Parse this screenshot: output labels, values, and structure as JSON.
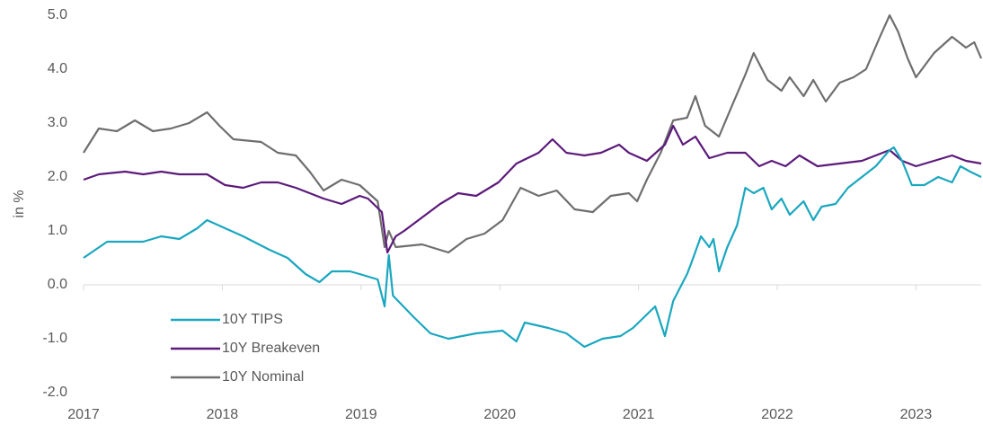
{
  "chart_data": {
    "type": "line",
    "y_label": "in %",
    "xlim": [
      2017,
      2023.47
    ],
    "xticks": [
      2017,
      2018,
      2019,
      2020,
      2021,
      2022,
      2023
    ],
    "ylim": [
      -2,
      5
    ],
    "yticks": [
      {
        "value": -2,
        "label": "-2.0"
      },
      {
        "value": -1,
        "label": "-1.0"
      },
      {
        "value": 0,
        "label": "0.0"
      },
      {
        "value": 1,
        "label": "1.0"
      },
      {
        "value": 2,
        "label": "2.0"
      },
      {
        "value": 3,
        "label": "3.0"
      },
      {
        "value": 4,
        "label": "4.0"
      },
      {
        "value": 5,
        "label": "5.0"
      }
    ],
    "legend": "lower-left",
    "series": [
      {
        "name": "10Y TIPS",
        "color": "#1aa7bf",
        "x": [
          2017,
          2017.17,
          2017.43,
          2017.56,
          2017.69,
          2017.82,
          2017.89,
          2018.02,
          2018.15,
          2018.34,
          2018.47,
          2018.6,
          2018.7,
          2018.79,
          2018.92,
          2018.99,
          2019.12,
          2019.17,
          2019.2,
          2019.23,
          2019.38,
          2019.5,
          2019.63,
          2019.83,
          2020.02,
          2020.12,
          2020.18,
          2020.35,
          2020.48,
          2020.61,
          2020.74,
          2020.87,
          2020.96,
          2021.06,
          2021.12,
          2021.19,
          2021.25,
          2021.35,
          2021.38,
          2021.45,
          2021.51,
          2021.54,
          2021.58,
          2021.64,
          2021.71,
          2021.77,
          2021.83,
          2021.9,
          2021.96,
          2022.03,
          2022.09,
          2022.19,
          2022.26,
          2022.32,
          2022.42,
          2022.51,
          2022.61,
          2022.71,
          2022.81,
          2022.84,
          2022.9,
          2022.97,
          2023.06,
          2023.16,
          2023.26,
          2023.32,
          2023.39,
          2023.47
        ],
        "values": [
          0.5,
          0.8,
          0.8,
          0.9,
          0.85,
          1.05,
          1.2,
          1.05,
          0.9,
          0.65,
          0.5,
          0.2,
          0.05,
          0.25,
          0.25,
          0.2,
          0.1,
          -0.4,
          0.55,
          -0.2,
          -0.6,
          -0.9,
          -1.0,
          -0.9,
          -0.85,
          -1.05,
          -0.7,
          -0.8,
          -0.9,
          -1.15,
          -1.0,
          -0.95,
          -0.8,
          -0.55,
          -0.4,
          -0.95,
          -0.3,
          0.2,
          0.4,
          0.9,
          0.7,
          0.85,
          0.25,
          0.7,
          1.1,
          1.8,
          1.7,
          1.8,
          1.4,
          1.6,
          1.3,
          1.55,
          1.2,
          1.45,
          1.5,
          1.8,
          2.0,
          2.2,
          2.5,
          2.55,
          2.3,
          1.85,
          1.85,
          2.0,
          1.9,
          2.2,
          2.1,
          2.0
        ]
      },
      {
        "name": "10Y Breakeven",
        "color": "#5c1a7a",
        "x": [
          2017,
          2017.11,
          2017.3,
          2017.43,
          2017.56,
          2017.69,
          2017.89,
          2018.02,
          2018.15,
          2018.28,
          2018.4,
          2018.53,
          2018.73,
          2018.86,
          2018.99,
          2019.05,
          2019.15,
          2019.19,
          2019.25,
          2019.31,
          2019.44,
          2019.57,
          2019.7,
          2019.83,
          2019.99,
          2020.12,
          2020.28,
          2020.38,
          2020.48,
          2020.61,
          2020.73,
          2020.86,
          2020.93,
          2021.06,
          2021.19,
          2021.25,
          2021.32,
          2021.41,
          2021.51,
          2021.64,
          2021.77,
          2021.87,
          2021.96,
          2022.06,
          2022.16,
          2022.29,
          2022.45,
          2022.61,
          2022.81,
          2022.9,
          2023.0,
          2023.13,
          2023.26,
          2023.36,
          2023.47
        ],
        "values": [
          1.95,
          2.05,
          2.1,
          2.05,
          2.1,
          2.05,
          2.05,
          1.85,
          1.8,
          1.9,
          1.9,
          1.8,
          1.6,
          1.5,
          1.65,
          1.6,
          1.35,
          0.6,
          0.9,
          1.0,
          1.25,
          1.5,
          1.7,
          1.65,
          1.9,
          2.25,
          2.45,
          2.7,
          2.45,
          2.4,
          2.45,
          2.6,
          2.45,
          2.3,
          2.6,
          2.95,
          2.6,
          2.75,
          2.35,
          2.45,
          2.45,
          2.2,
          2.3,
          2.2,
          2.4,
          2.2,
          2.25,
          2.3,
          2.5,
          2.3,
          2.2,
          2.3,
          2.4,
          2.3,
          2.25
        ]
      },
      {
        "name": "10Y Nominal",
        "color": "#6e6e6e",
        "x": [
          2017,
          2017.11,
          2017.24,
          2017.37,
          2017.5,
          2017.63,
          2017.76,
          2017.89,
          2017.98,
          2018.08,
          2018.28,
          2018.4,
          2018.53,
          2018.63,
          2018.73,
          2018.86,
          2018.99,
          2019.12,
          2019.17,
          2019.2,
          2019.25,
          2019.44,
          2019.63,
          2019.76,
          2019.89,
          2020.02,
          2020.15,
          2020.28,
          2020.41,
          2020.54,
          2020.67,
          2020.8,
          2020.93,
          2020.99,
          2021.06,
          2021.16,
          2021.25,
          2021.35,
          2021.41,
          2021.48,
          2021.58,
          2021.67,
          2021.77,
          2021.83,
          2021.93,
          2022.03,
          2022.09,
          2022.19,
          2022.26,
          2022.35,
          2022.45,
          2022.55,
          2022.64,
          2022.74,
          2022.81,
          2022.87,
          2022.94,
          2023.0,
          2023.13,
          2023.26,
          2023.36,
          2023.42,
          2023.47
        ],
        "values": [
          2.45,
          2.9,
          2.85,
          3.05,
          2.85,
          2.9,
          3.0,
          3.2,
          2.95,
          2.7,
          2.65,
          2.45,
          2.4,
          2.1,
          1.75,
          1.95,
          1.85,
          1.55,
          0.7,
          1.0,
          0.7,
          0.75,
          0.6,
          0.85,
          0.95,
          1.2,
          1.8,
          1.65,
          1.75,
          1.4,
          1.35,
          1.65,
          1.7,
          1.55,
          1.95,
          2.45,
          3.05,
          3.1,
          3.5,
          2.95,
          2.75,
          3.3,
          3.9,
          4.3,
          3.8,
          3.6,
          3.85,
          3.5,
          3.8,
          3.4,
          3.75,
          3.85,
          4.0,
          4.6,
          5.0,
          4.7,
          4.2,
          3.85,
          4.3,
          4.6,
          4.4,
          4.5,
          4.2
        ]
      }
    ]
  }
}
